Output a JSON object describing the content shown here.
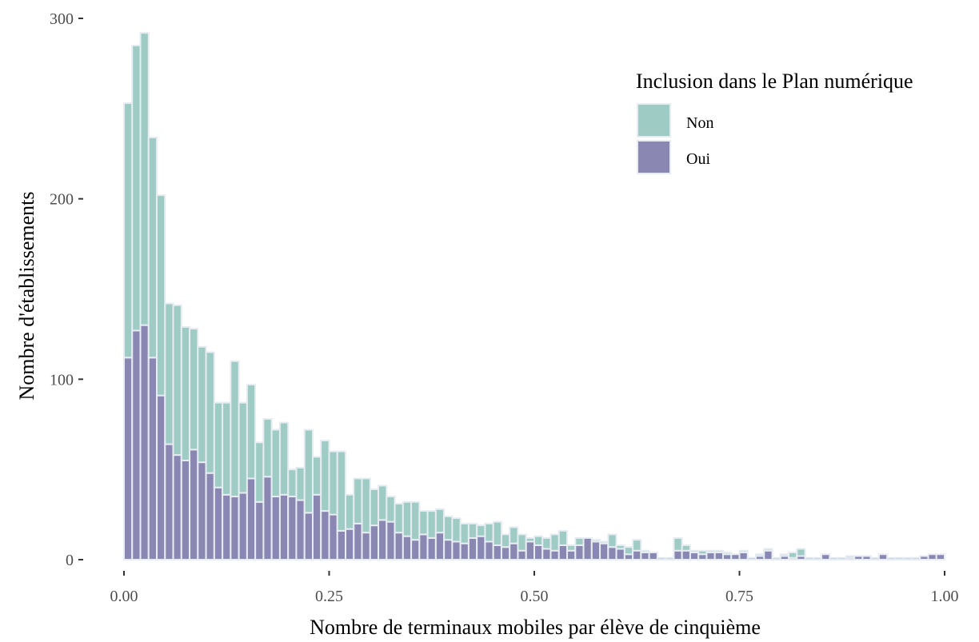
{
  "chart_data": {
    "type": "bar",
    "stacked": true,
    "title": "",
    "xlabel": "Nombre de terminaux mobiles par élève de cinquième",
    "ylabel": "Nombre d'établissements",
    "xlim": [
      0,
      1
    ],
    "ylim": [
      0,
      300
    ],
    "bin_width": 0.01,
    "x_ticks": [
      0,
      0.25,
      0.5,
      0.75,
      1
    ],
    "x_tick_labels": [
      "0.00",
      "0.25",
      "0.50",
      "0.75",
      "1.00"
    ],
    "y_ticks": [
      0,
      100,
      200,
      300
    ],
    "y_tick_labels": [
      "0",
      "100",
      "200",
      "300"
    ],
    "grid": false,
    "legend": {
      "title": "Inclusion dans le Plan numérique",
      "position": "top-right",
      "items": [
        {
          "label": "Non",
          "color": "#9ecbc3"
        },
        {
          "label": "Oui",
          "color": "#8a88b2"
        }
      ]
    },
    "bar_edge_color": "#e6ecf2",
    "x": [
      0.005,
      0.015,
      0.025,
      0.035,
      0.045,
      0.055,
      0.065,
      0.075,
      0.085,
      0.095,
      0.105,
      0.115,
      0.125,
      0.135,
      0.145,
      0.155,
      0.165,
      0.175,
      0.185,
      0.195,
      0.205,
      0.215,
      0.225,
      0.235,
      0.245,
      0.255,
      0.265,
      0.275,
      0.285,
      0.295,
      0.305,
      0.315,
      0.325,
      0.335,
      0.345,
      0.355,
      0.365,
      0.375,
      0.385,
      0.395,
      0.405,
      0.415,
      0.425,
      0.435,
      0.445,
      0.455,
      0.465,
      0.475,
      0.485,
      0.495,
      0.505,
      0.515,
      0.525,
      0.535,
      0.545,
      0.555,
      0.565,
      0.575,
      0.585,
      0.595,
      0.605,
      0.615,
      0.625,
      0.635,
      0.645,
      0.655,
      0.665,
      0.675,
      0.685,
      0.695,
      0.705,
      0.715,
      0.725,
      0.735,
      0.745,
      0.755,
      0.765,
      0.775,
      0.785,
      0.795,
      0.805,
      0.815,
      0.825,
      0.835,
      0.845,
      0.855,
      0.865,
      0.875,
      0.885,
      0.895,
      0.905,
      0.915,
      0.925,
      0.935,
      0.945,
      0.955,
      0.965,
      0.975,
      0.985,
      0.995
    ],
    "series": [
      {
        "name": "Oui",
        "values": [
          112,
          127,
          130,
          112,
          91,
          64,
          58,
          55,
          61,
          54,
          48,
          40,
          36,
          35,
          37,
          45,
          32,
          46,
          35,
          36,
          35,
          33,
          26,
          36,
          27,
          25,
          16,
          17,
          20,
          15,
          19,
          22,
          21,
          15,
          13,
          11,
          14,
          12,
          15,
          11,
          10,
          9,
          12,
          13,
          10,
          8,
          7,
          9,
          5,
          10,
          8,
          6,
          5,
          8,
          5,
          8,
          12,
          10,
          9,
          7,
          6,
          3,
          5,
          4,
          4,
          1,
          1,
          5,
          5,
          4,
          3,
          4,
          4,
          3,
          3,
          4,
          1,
          2,
          5,
          1,
          2,
          1,
          2,
          1,
          1,
          3,
          1,
          1,
          1,
          2,
          2,
          1,
          3,
          1,
          1,
          1,
          1,
          2,
          3,
          3
        ]
      },
      {
        "name": "Non",
        "values": [
          141,
          158,
          162,
          122,
          111,
          78,
          83,
          74,
          67,
          64,
          67,
          47,
          51,
          75,
          50,
          52,
          33,
          32,
          37,
          40,
          15,
          18,
          46,
          21,
          39,
          35,
          44,
          19,
          25,
          30,
          20,
          19,
          14,
          16,
          19,
          21,
          13,
          15,
          13,
          13,
          13,
          11,
          8,
          6,
          10,
          13,
          7,
          9,
          9,
          2,
          5,
          6,
          9,
          8,
          3,
          4,
          0,
          1,
          1,
          7,
          2,
          4,
          6,
          1,
          0,
          0,
          0,
          7,
          3,
          1,
          2,
          1,
          1,
          1,
          0,
          1,
          0,
          1,
          1,
          0,
          1,
          3,
          4,
          0,
          0,
          0,
          0,
          0,
          1,
          0,
          0,
          0,
          0,
          0,
          0,
          0,
          0,
          0,
          0,
          0
        ]
      }
    ]
  }
}
